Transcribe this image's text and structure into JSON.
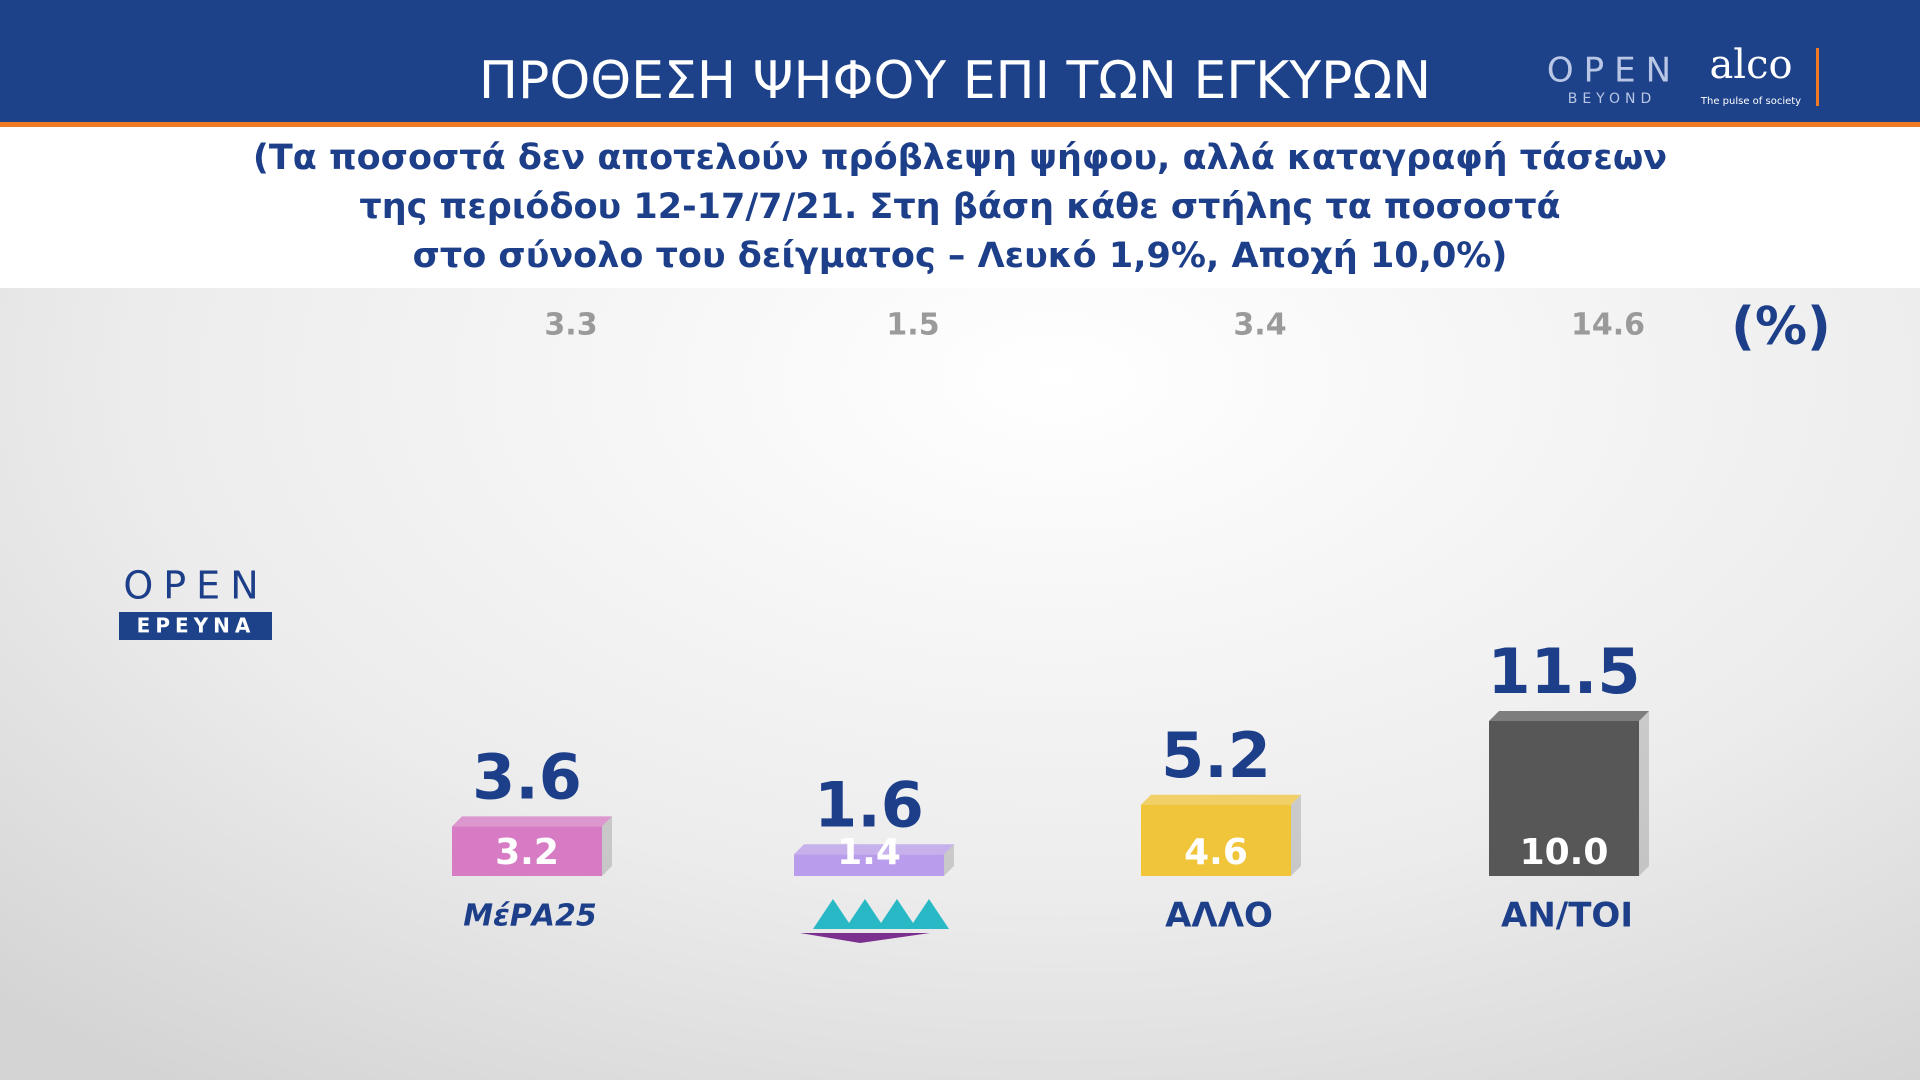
{
  "header": {
    "title": "ΠΡΟΘΕΣΗ ΨΗΦΟΥ ΕΠΙ ΤΩΝ ΕΓΚΥΡΩΝ",
    "subtitle": [
      "(Τα ποσοστά δεν αποτελούν πρόβλεψη ψήφου, αλλά καταγραφή τάσεων",
      "της περιόδου 12-17/7/21. Στη βάση κάθε στήλης τα ποσοστά",
      "στο σύνολο του δείγματος – Λευκό 1,9%, Αποχή 10,0%)"
    ]
  },
  "branding": {
    "open": "OPEN",
    "beyond": "BEYOND",
    "alco": "alco",
    "alco_tagline": "The pulse of society",
    "research_open": "OPEN",
    "research_label": "ΕΡΕΥΝΑ"
  },
  "chart_data": {
    "type": "bar",
    "unit_label": "(%)",
    "categories": [
      "ΜέΡΑ25",
      null,
      "ΑΛΛΟ",
      "ΑΝ/ΤΟΙ"
    ],
    "series": [
      {
        "colors": [
          "#d77bc4",
          "#b99cec",
          "#f0c53a",
          "#575757"
        ],
        "values": [
          3.2,
          1.4,
          4.6,
          10.0
        ],
        "value_labels": [
          "3.2",
          "1.4",
          "4.6",
          "10.0"
        ]
      },
      {
        "color": "#1d3f8a",
        "values": [
          3.6,
          1.6,
          5.2,
          11.5
        ]
      },
      {
        "color": "#9a9a9a",
        "values": [
          3.3,
          1.5,
          3.4,
          14.6
        ]
      }
    ]
  }
}
